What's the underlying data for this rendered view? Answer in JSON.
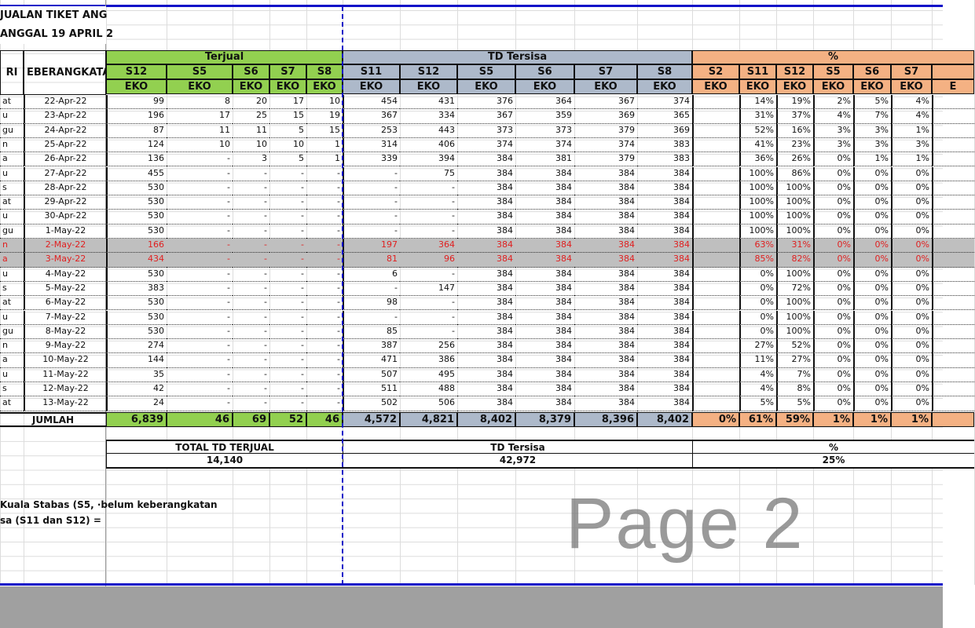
{
  "title_line1": "JUALAN TIKET ANG",
  "title_line2": "ANGGAL 19 APRIL 2",
  "headers": {
    "day": "RI",
    "date": "EBERANGKATA",
    "terjual": "Terjual",
    "tersisa": "TD Tersisa",
    "pct": "%",
    "terjual_cols": [
      "S12",
      "S5",
      "S6",
      "S7",
      "S8"
    ],
    "tersisa_cols": [
      "S11",
      "S12",
      "S5",
      "S6",
      "S7",
      "S8"
    ],
    "pct_cols": [
      "S2",
      "S11",
      "S12",
      "S5",
      "S6",
      "S7",
      ""
    ],
    "class_label": "EKO",
    "pct_partial_class": "E"
  },
  "colors": {
    "terjual": "#92d050",
    "tersisa": "#adb9ca",
    "pct": "#f4b183",
    "highlight": "#bfbfbf",
    "highlight_text": "#e02020",
    "page_border": "#1010c8"
  },
  "rows": [
    {
      "day": "at",
      "date": "22-Apr-22",
      "terjual": [
        "99",
        "8",
        "20",
        "17",
        "10"
      ],
      "tersisa": [
        "454",
        "431",
        "376",
        "364",
        "367",
        "374"
      ],
      "pct": [
        "",
        "14%",
        "19%",
        "2%",
        "5%",
        "4%"
      ]
    },
    {
      "day": "u",
      "date": "23-Apr-22",
      "terjual": [
        "196",
        "17",
        "25",
        "15",
        "19"
      ],
      "tersisa": [
        "367",
        "334",
        "367",
        "359",
        "369",
        "365"
      ],
      "pct": [
        "",
        "31%",
        "37%",
        "4%",
        "7%",
        "4%"
      ]
    },
    {
      "day": "gu",
      "date": "24-Apr-22",
      "terjual": [
        "87",
        "11",
        "11",
        "5",
        "15"
      ],
      "tersisa": [
        "253",
        "443",
        "373",
        "373",
        "379",
        "369"
      ],
      "pct": [
        "",
        "52%",
        "16%",
        "3%",
        "3%",
        "1%"
      ]
    },
    {
      "day": "n",
      "date": "25-Apr-22",
      "terjual": [
        "124",
        "10",
        "10",
        "10",
        "1"
      ],
      "tersisa": [
        "314",
        "406",
        "374",
        "374",
        "374",
        "383"
      ],
      "pct": [
        "",
        "41%",
        "23%",
        "3%",
        "3%",
        "3%"
      ]
    },
    {
      "day": "a",
      "date": "26-Apr-22",
      "terjual": [
        "136",
        "-",
        "3",
        "5",
        "1"
      ],
      "tersisa": [
        "339",
        "394",
        "384",
        "381",
        "379",
        "383"
      ],
      "pct": [
        "",
        "36%",
        "26%",
        "0%",
        "1%",
        "1%"
      ]
    },
    {
      "day": "u",
      "date": "27-Apr-22",
      "terjual": [
        "455",
        "-",
        "-",
        "-",
        "-"
      ],
      "tersisa": [
        "-",
        "75",
        "384",
        "384",
        "384",
        "384"
      ],
      "pct": [
        "",
        "100%",
        "86%",
        "0%",
        "0%",
        "0%"
      ]
    },
    {
      "day": "s",
      "date": "28-Apr-22",
      "terjual": [
        "530",
        "-",
        "-",
        "-",
        "-"
      ],
      "tersisa": [
        "-",
        "-",
        "384",
        "384",
        "384",
        "384"
      ],
      "pct": [
        "",
        "100%",
        "100%",
        "0%",
        "0%",
        "0%"
      ]
    },
    {
      "day": "at",
      "date": "29-Apr-22",
      "terjual": [
        "530",
        "-",
        "-",
        "-",
        "-"
      ],
      "tersisa": [
        "-",
        "-",
        "384",
        "384",
        "384",
        "384"
      ],
      "pct": [
        "",
        "100%",
        "100%",
        "0%",
        "0%",
        "0%"
      ]
    },
    {
      "day": "u",
      "date": "30-Apr-22",
      "terjual": [
        "530",
        "-",
        "-",
        "-",
        "-"
      ],
      "tersisa": [
        "-",
        "-",
        "384",
        "384",
        "384",
        "384"
      ],
      "pct": [
        "",
        "100%",
        "100%",
        "0%",
        "0%",
        "0%"
      ]
    },
    {
      "day": "gu",
      "date": "1-May-22",
      "terjual": [
        "530",
        "-",
        "-",
        "-",
        "-"
      ],
      "tersisa": [
        "-",
        "-",
        "384",
        "384",
        "384",
        "384"
      ],
      "pct": [
        "",
        "100%",
        "100%",
        "0%",
        "0%",
        "0%"
      ]
    },
    {
      "day": "n",
      "date": "2-May-22",
      "terjual": [
        "166",
        "-",
        "-",
        "-",
        "-"
      ],
      "tersisa": [
        "197",
        "364",
        "384",
        "384",
        "384",
        "384"
      ],
      "pct": [
        "",
        "63%",
        "31%",
        "0%",
        "0%",
        "0%"
      ],
      "highlight": true
    },
    {
      "day": "a",
      "date": "3-May-22",
      "terjual": [
        "434",
        "-",
        "-",
        "-",
        "-"
      ],
      "tersisa": [
        "81",
        "96",
        "384",
        "384",
        "384",
        "384"
      ],
      "pct": [
        "",
        "85%",
        "82%",
        "0%",
        "0%",
        "0%"
      ],
      "highlight": true
    },
    {
      "day": "u",
      "date": "4-May-22",
      "terjual": [
        "530",
        "-",
        "-",
        "-",
        "-"
      ],
      "tersisa": [
        "6",
        "-",
        "384",
        "384",
        "384",
        "384"
      ],
      "pct": [
        "",
        "0%",
        "100%",
        "0%",
        "0%",
        "0%"
      ]
    },
    {
      "day": "s",
      "date": "5-May-22",
      "terjual": [
        "383",
        "-",
        "-",
        "-",
        "-"
      ],
      "tersisa": [
        "-",
        "147",
        "384",
        "384",
        "384",
        "384"
      ],
      "pct": [
        "",
        "0%",
        "72%",
        "0%",
        "0%",
        "0%"
      ]
    },
    {
      "day": "at",
      "date": "6-May-22",
      "terjual": [
        "530",
        "-",
        "-",
        "-",
        "-"
      ],
      "tersisa": [
        "98",
        "-",
        "384",
        "384",
        "384",
        "384"
      ],
      "pct": [
        "",
        "0%",
        "100%",
        "0%",
        "0%",
        "0%"
      ]
    },
    {
      "day": "u",
      "date": "7-May-22",
      "terjual": [
        "530",
        "-",
        "-",
        "-",
        "-"
      ],
      "tersisa": [
        "-",
        "-",
        "384",
        "384",
        "384",
        "384"
      ],
      "pct": [
        "",
        "0%",
        "100%",
        "0%",
        "0%",
        "0%"
      ]
    },
    {
      "day": "gu",
      "date": "8-May-22",
      "terjual": [
        "530",
        "-",
        "-",
        "-",
        "-"
      ],
      "tersisa": [
        "85",
        "-",
        "384",
        "384",
        "384",
        "384"
      ],
      "pct": [
        "",
        "0%",
        "100%",
        "0%",
        "0%",
        "0%"
      ]
    },
    {
      "day": "n",
      "date": "9-May-22",
      "terjual": [
        "274",
        "-",
        "-",
        "-",
        "-"
      ],
      "tersisa": [
        "387",
        "256",
        "384",
        "384",
        "384",
        "384"
      ],
      "pct": [
        "",
        "27%",
        "52%",
        "0%",
        "0%",
        "0%"
      ]
    },
    {
      "day": "a",
      "date": "10-May-22",
      "terjual": [
        "144",
        "-",
        "-",
        "-",
        "-"
      ],
      "tersisa": [
        "471",
        "386",
        "384",
        "384",
        "384",
        "384"
      ],
      "pct": [
        "",
        "11%",
        "27%",
        "0%",
        "0%",
        "0%"
      ]
    },
    {
      "day": "u",
      "date": "11-May-22",
      "terjual": [
        "35",
        "-",
        "-",
        "-",
        "-"
      ],
      "tersisa": [
        "507",
        "495",
        "384",
        "384",
        "384",
        "384"
      ],
      "pct": [
        "",
        "4%",
        "7%",
        "0%",
        "0%",
        "0%"
      ]
    },
    {
      "day": "s",
      "date": "12-May-22",
      "terjual": [
        "42",
        "-",
        "-",
        "-",
        "-"
      ],
      "tersisa": [
        "511",
        "488",
        "384",
        "384",
        "384",
        "384"
      ],
      "pct": [
        "",
        "4%",
        "8%",
        "0%",
        "0%",
        "0%"
      ]
    },
    {
      "day": "at",
      "date": "13-May-22",
      "terjual": [
        "24",
        "-",
        "-",
        "-",
        "-"
      ],
      "tersisa": [
        "502",
        "506",
        "384",
        "384",
        "384",
        "384"
      ],
      "pct": [
        "",
        "5%",
        "5%",
        "0%",
        "0%",
        "0%"
      ]
    }
  ],
  "totals": {
    "label": "JUMLAH",
    "terjual": [
      "6,839",
      "46",
      "69",
      "52",
      "46"
    ],
    "tersisa": [
      "4,572",
      "4,821",
      "8,402",
      "8,379",
      "8,396",
      "8,402"
    ],
    "pct": [
      "0%",
      "61%",
      "59%",
      "1%",
      "1%",
      "1%"
    ]
  },
  "summary": {
    "terjual_label": "TOTAL TD TERJUAL",
    "terjual_value": "14,140",
    "tersisa_label": "TD Tersisa",
    "tersisa_value": "42,972",
    "pct_label": "%",
    "pct_value": "25%"
  },
  "notes": [
    "Kuala Stabas (S5, ·belum keberangkatan",
    "sa (S11 dan S12) ="
  ],
  "watermark": "Page 2"
}
